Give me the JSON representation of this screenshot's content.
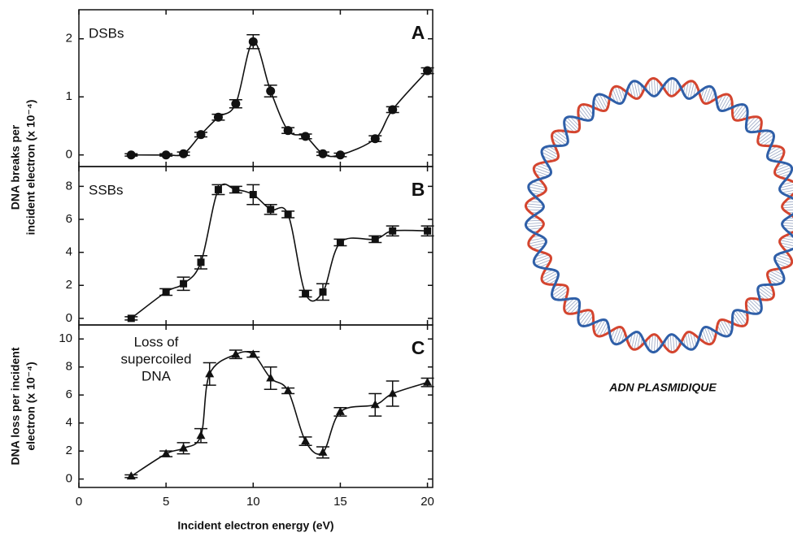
{
  "chart_data": [
    {
      "type": "line",
      "label": "DSBs",
      "panel": "A",
      "marker": "circle",
      "color": "#111111",
      "ylabel_lines": [
        "DNA breaks per",
        "incident electron (x 10⁻⁴)"
      ],
      "x": [
        3,
        5,
        6,
        7,
        8,
        9,
        10,
        11,
        12,
        13,
        14,
        15,
        17,
        18,
        20
      ],
      "values": [
        0,
        0,
        0.02,
        0.35,
        0.65,
        0.88,
        1.95,
        1.1,
        0.42,
        0.32,
        0.02,
        0,
        0.28,
        0.78,
        1.45
      ],
      "errors": [
        0.02,
        0.02,
        0.03,
        0.04,
        0.05,
        0.07,
        0.12,
        0.1,
        0.05,
        0.04,
        0.03,
        0.03,
        0.05,
        0.05,
        0.05
      ],
      "xlim": [
        0,
        20.3
      ],
      "xticks": [
        0,
        5,
        10,
        15,
        20
      ],
      "ylim": [
        -0.2,
        2.5
      ],
      "yticks": [
        0,
        1,
        2
      ]
    },
    {
      "type": "line",
      "label": "SSBs",
      "panel": "B",
      "marker": "square",
      "color": "#111111",
      "x": [
        3,
        5,
        6,
        7,
        8,
        9,
        10,
        11,
        12,
        13,
        14,
        15,
        17,
        18,
        20
      ],
      "values": [
        0,
        1.6,
        2.1,
        3.4,
        7.8,
        7.8,
        7.5,
        6.6,
        6.3,
        1.5,
        1.6,
        4.6,
        4.8,
        5.3,
        5.3
      ],
      "errors": [
        0.1,
        0.2,
        0.4,
        0.4,
        0.3,
        0.2,
        0.6,
        0.3,
        0.2,
        0.2,
        0.5,
        0.2,
        0.2,
        0.3,
        0.3
      ],
      "xlim": [
        0,
        20.3
      ],
      "xticks": [
        0,
        5,
        10,
        15,
        20
      ],
      "ylim": [
        -0.4,
        9.2
      ],
      "yticks": [
        0,
        2,
        4,
        6,
        8
      ]
    },
    {
      "type": "line",
      "label_lines": [
        "Loss of",
        "supercoiled",
        "DNA"
      ],
      "panel": "C",
      "marker": "triangle",
      "color": "#111111",
      "ylabel_lines": [
        "DNA loss per incident",
        "electron (x 10⁻⁴)"
      ],
      "xlabel": "Incident electron energy (eV)",
      "x": [
        3,
        5,
        6,
        7,
        7.5,
        9,
        10,
        11,
        12,
        13,
        14,
        15,
        17,
        18,
        20
      ],
      "values": [
        0.2,
        1.8,
        2.2,
        3.1,
        7.5,
        8.9,
        8.9,
        7.2,
        6.3,
        2.7,
        1.9,
        4.8,
        5.3,
        6.1,
        6.9
      ],
      "errors": [
        0.1,
        0.2,
        0.4,
        0.5,
        0.8,
        0.3,
        0.2,
        0.8,
        0.2,
        0.3,
        0.4,
        0.3,
        0.8,
        0.9,
        0.3
      ],
      "xlim": [
        0,
        20.3
      ],
      "xticks": [
        0,
        5,
        10,
        15,
        20
      ],
      "ylim": [
        -0.6,
        11
      ],
      "yticks": [
        0,
        2,
        4,
        6,
        8,
        10
      ]
    }
  ],
  "caption": "ADN PLASMIDIQUE"
}
